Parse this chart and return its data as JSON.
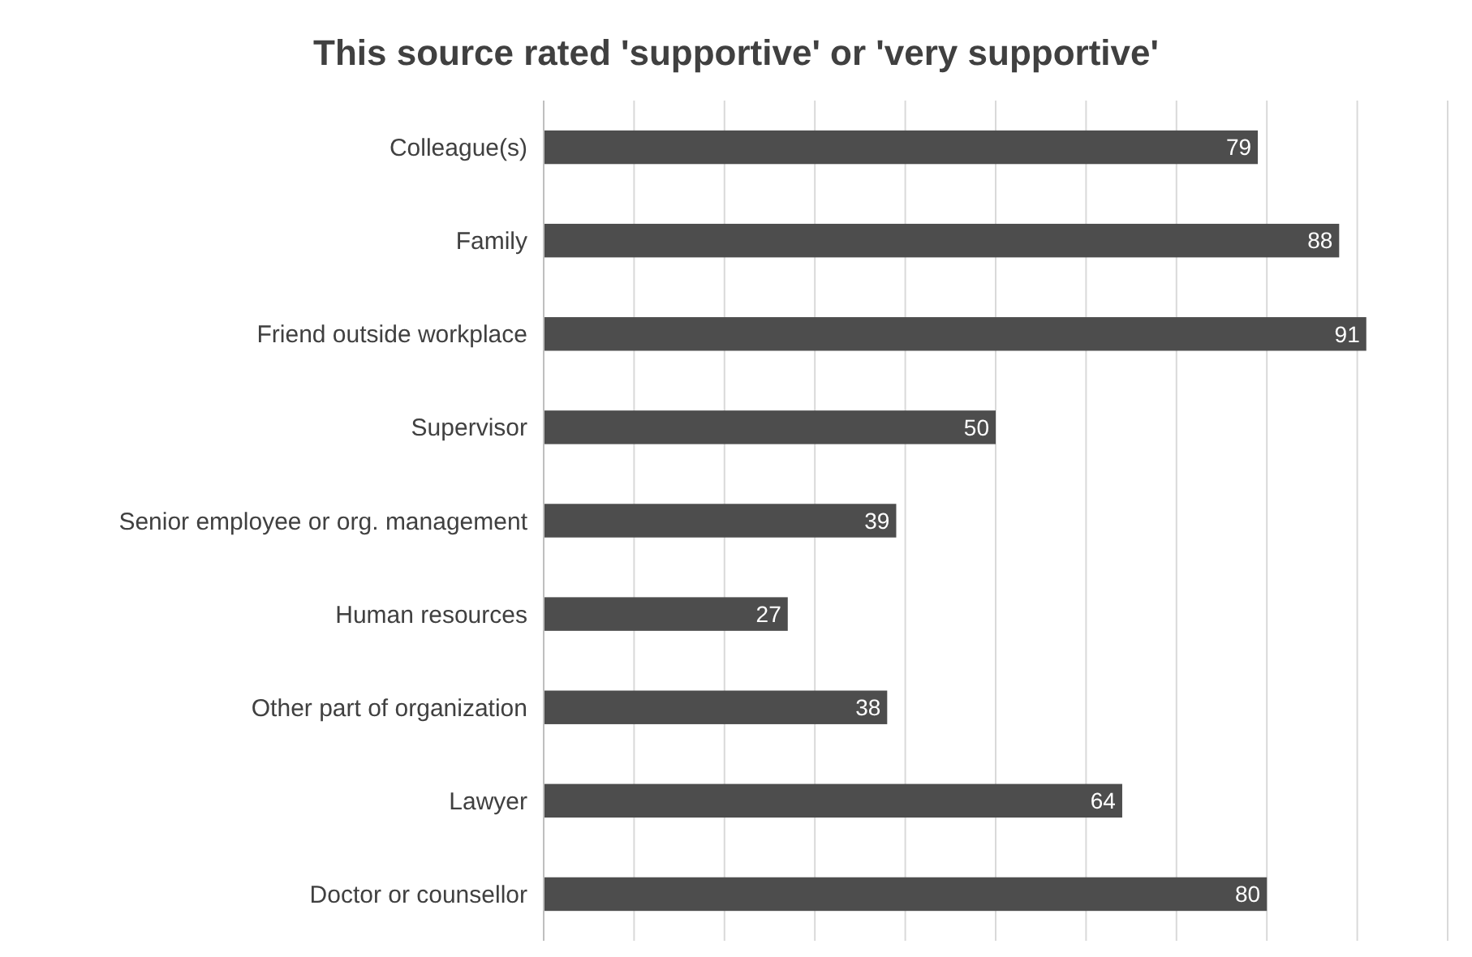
{
  "chart_data": {
    "type": "bar",
    "orientation": "horizontal",
    "title": "This source rated 'supportive' or 'very supportive'",
    "categories": [
      "Colleague(s)",
      "Family",
      "Friend outside workplace",
      "Supervisor",
      "Senior employee or org. management",
      "Human resources",
      "Other part of organization",
      "Lawyer",
      "Doctor or counsellor"
    ],
    "values": [
      79,
      88,
      91,
      50,
      39,
      27,
      38,
      64,
      80
    ],
    "color": "#4d4d4d",
    "xlim": [
      0,
      100
    ],
    "xticks": [
      {
        "value": 0,
        "label": null
      },
      {
        "value": 10,
        "label": null
      },
      {
        "value": 20,
        "label": null
      },
      {
        "value": 30,
        "label": null
      },
      {
        "value": 40,
        "label": null
      },
      {
        "value": 50,
        "label": null
      },
      {
        "value": 60,
        "label": null
      },
      {
        "value": 70,
        "label": null
      },
      {
        "value": 80,
        "label": null
      },
      {
        "value": 90,
        "label": null
      },
      {
        "value": 100,
        "label": null
      }
    ],
    "grid": "x",
    "tick_labels": "y",
    "data_labels": true
  }
}
